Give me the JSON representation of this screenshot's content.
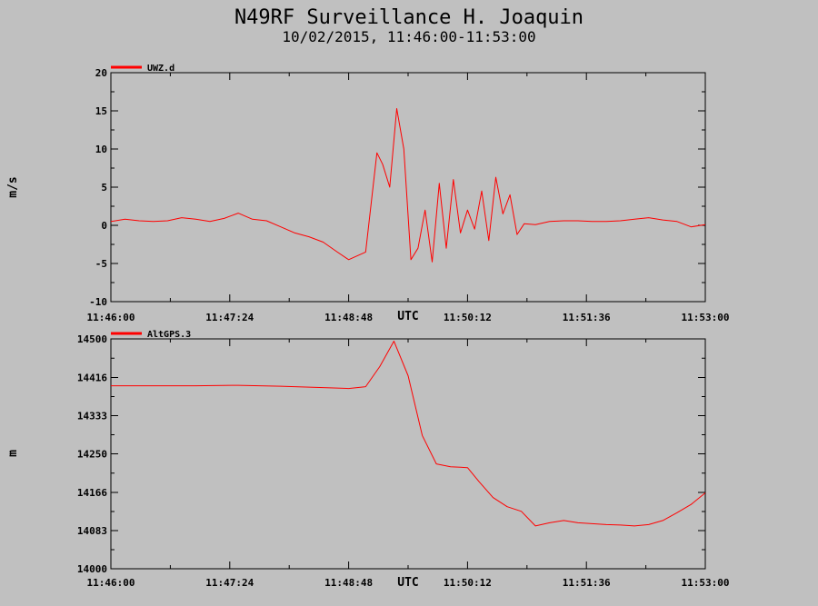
{
  "title": "N49RF Surveillance H. Joaquin",
  "subtitle": "10/02/2015, 11:46:00-11:53:00",
  "colors": {
    "background": "#c0c0c0",
    "series": "#ff0000",
    "axis": "#000000"
  },
  "chart_data": [
    {
      "type": "line",
      "legend_placement": "top-left",
      "grid": false,
      "xlabel": "UTC",
      "ylabel": "m/s",
      "xlim": [
        "11:46:00",
        "11:53:00"
      ],
      "ylim": [
        -10,
        20
      ],
      "x_tick_labels": [
        "11:46:00",
        "11:47:24",
        "11:48:48",
        "11:50:12",
        "11:51:36",
        "11:53:00"
      ],
      "y_tick_values": [
        -10,
        -5,
        0,
        5,
        10,
        15,
        20
      ],
      "y_tick_labels": [
        "-10",
        "-5",
        "0",
        "5",
        "10",
        "15",
        "20"
      ],
      "series": [
        {
          "name": "UWZ.d",
          "x": [
            "11:46:00",
            "11:46:10",
            "11:46:20",
            "11:46:30",
            "11:46:40",
            "11:46:50",
            "11:47:00",
            "11:47:10",
            "11:47:20",
            "11:47:30",
            "11:47:40",
            "11:47:50",
            "11:48:00",
            "11:48:10",
            "11:48:20",
            "11:48:30",
            "11:48:40",
            "11:48:48",
            "11:49:00",
            "11:49:08",
            "11:49:12",
            "11:49:17",
            "11:49:22",
            "11:49:27",
            "11:49:32",
            "11:49:37",
            "11:49:42",
            "11:49:47",
            "11:49:52",
            "11:49:57",
            "11:50:02",
            "11:50:07",
            "11:50:12",
            "11:50:17",
            "11:50:22",
            "11:50:27",
            "11:50:32",
            "11:50:37",
            "11:50:42",
            "11:50:47",
            "11:50:52",
            "11:51:00",
            "11:51:10",
            "11:51:20",
            "11:51:30",
            "11:51:40",
            "11:51:50",
            "11:52:00",
            "11:52:10",
            "11:52:20",
            "11:52:30",
            "11:52:40",
            "11:52:50",
            "11:53:00"
          ],
          "y": [
            0.5,
            0.8,
            0.6,
            0.5,
            0.6,
            1.0,
            0.8,
            0.5,
            0.9,
            1.6,
            0.8,
            0.6,
            -0.2,
            -1.0,
            -1.5,
            -2.2,
            -3.5,
            -4.5,
            -3.5,
            9.5,
            8.0,
            5.0,
            15.3,
            10.0,
            -4.5,
            -3.0,
            2.0,
            -4.8,
            5.5,
            -3.0,
            6.0,
            -1.0,
            2.0,
            -0.5,
            4.5,
            -2.0,
            6.3,
            1.5,
            4.0,
            -1.2,
            0.2,
            0.1,
            0.5,
            0.6,
            0.6,
            0.5,
            0.5,
            0.6,
            0.8,
            1.0,
            0.7,
            0.5,
            -0.2,
            0.1
          ]
        }
      ]
    },
    {
      "type": "line",
      "legend_placement": "top-left",
      "grid": false,
      "xlabel": "UTC",
      "ylabel": "m",
      "xlim": [
        "11:46:00",
        "11:53:00"
      ],
      "ylim": [
        14000,
        14500
      ],
      "x_tick_labels": [
        "11:46:00",
        "11:47:24",
        "11:48:48",
        "11:50:12",
        "11:51:36",
        "11:53:00"
      ],
      "y_tick_values": [
        14000,
        14083,
        14166,
        14250,
        14333,
        14416,
        14500
      ],
      "y_tick_labels": [
        "14000",
        "14083",
        "14166",
        "14250",
        "14333",
        "14416",
        "14500"
      ],
      "series": [
        {
          "name": "AltGPS.3",
          "x": [
            "11:46:00",
            "11:46:30",
            "11:47:00",
            "11:47:30",
            "11:48:00",
            "11:48:30",
            "11:48:48",
            "11:49:00",
            "11:49:10",
            "11:49:20",
            "11:49:30",
            "11:49:40",
            "11:49:50",
            "11:50:00",
            "11:50:12",
            "11:50:20",
            "11:50:30",
            "11:50:40",
            "11:50:50",
            "11:51:00",
            "11:51:10",
            "11:51:20",
            "11:51:30",
            "11:51:40",
            "11:51:50",
            "11:52:00",
            "11:52:10",
            "11:52:20",
            "11:52:30",
            "11:52:40",
            "11:52:50",
            "11:53:00"
          ],
          "y": [
            14398,
            14398,
            14398,
            14399,
            14397,
            14394,
            14392,
            14396,
            14440,
            14495,
            14420,
            14290,
            14228,
            14222,
            14220,
            14190,
            14155,
            14135,
            14125,
            14093,
            14100,
            14105,
            14100,
            14098,
            14096,
            14095,
            14093,
            14096,
            14105,
            14122,
            14140,
            14165
          ]
        }
      ]
    }
  ]
}
